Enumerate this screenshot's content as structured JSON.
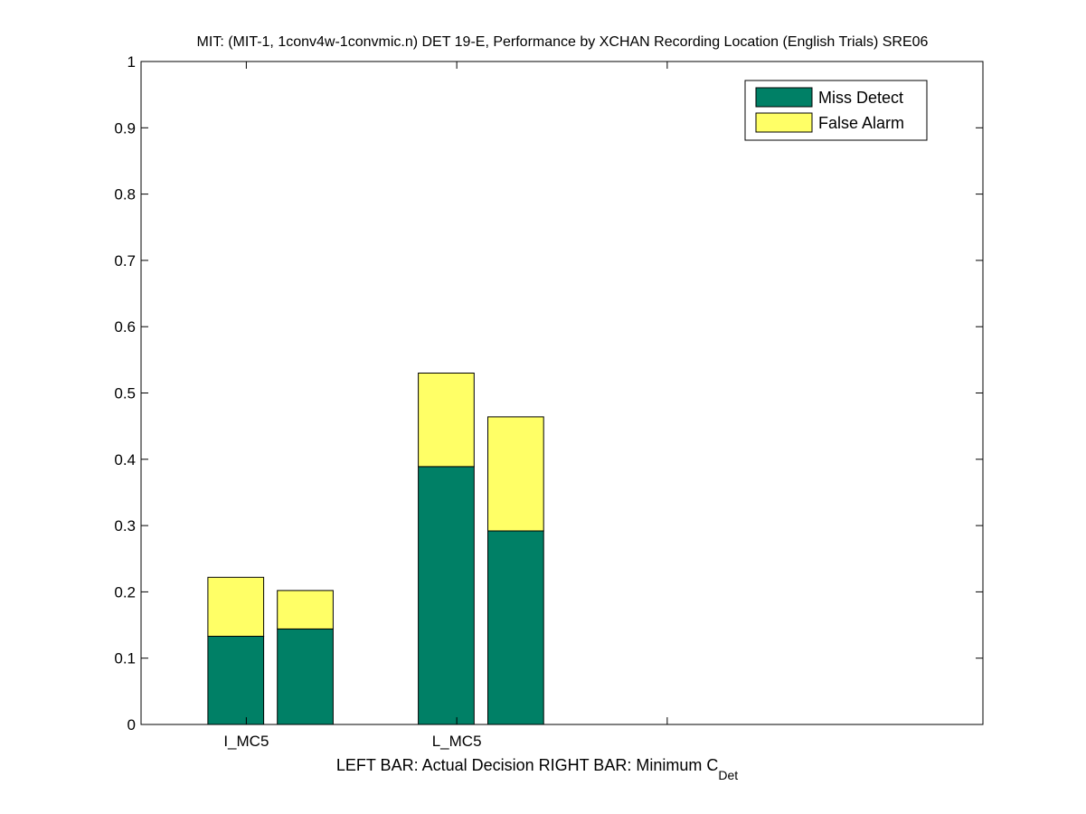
{
  "chart_data": {
    "type": "bar",
    "stacked": true,
    "title": "MIT: (MIT-1, 1conv4w-1convmic.n) DET 19-E,  Performance by XCHAN Recording Location (English Trials) SRE06",
    "xlabel": {
      "prefix": "LEFT BAR: Actual Decision     RIGHT BAR: Minimum C",
      "subscript": "Det"
    },
    "ylabel": "",
    "ylim": [
      0,
      1
    ],
    "yticks": [
      0,
      0.1,
      0.2,
      0.3,
      0.4,
      0.5,
      0.6,
      0.7,
      0.8,
      0.9,
      1
    ],
    "ytick_labels": [
      "0",
      "0.1",
      "0.2",
      "0.3",
      "0.4",
      "0.5",
      "0.6",
      "0.7",
      "0.8",
      "0.9",
      "1"
    ],
    "xlim": [
      0.5,
      4.5
    ],
    "xtick_positions": [
      1,
      2,
      3
    ],
    "categories": [
      {
        "name": "I_MC5",
        "position": 1
      },
      {
        "name": "L_MC5",
        "position": 2
      },
      {
        "name": "",
        "position": 3
      }
    ],
    "bar_offsets": [
      -0.05,
      0.28
    ],
    "bar_width": 0.265,
    "series": [
      {
        "name": "Miss Detect",
        "color": "#008066",
        "values": [
          [
            0.133,
            0.144
          ],
          [
            0.389,
            0.292
          ]
        ]
      },
      {
        "name": "False Alarm",
        "color": "#ffff66",
        "values": [
          [
            0.089,
            0.058
          ],
          [
            0.141,
            0.172
          ]
        ]
      }
    ],
    "bar_sublabels": [
      "Actual Decision",
      "Minimum C_Det"
    ],
    "legend_position": "top-right",
    "grid": false
  }
}
